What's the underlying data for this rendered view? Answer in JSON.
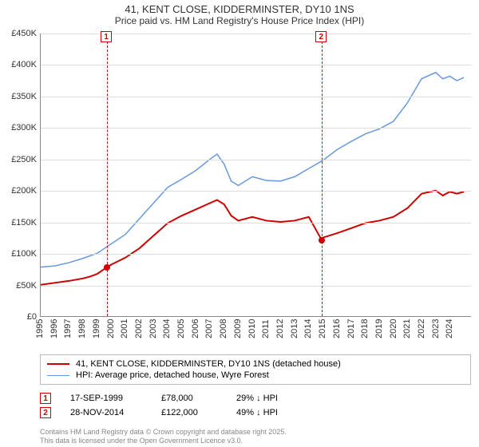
{
  "title": {
    "line1": "41, KENT CLOSE, KIDDERMINSTER, DY10 1NS",
    "line2": "Price paid vs. HM Land Registry's House Price Index (HPI)"
  },
  "chart": {
    "type": "line",
    "background_color": "#ffffff",
    "grid_color": "#dddddd",
    "ylim": [
      0,
      450000
    ],
    "ytick_step": 50000,
    "ytick_labels": [
      "£0",
      "£50K",
      "£100K",
      "£150K",
      "£200K",
      "£250K",
      "£300K",
      "£350K",
      "£400K",
      "£450K"
    ],
    "xlim": [
      1995,
      2025.5
    ],
    "xticks": [
      1995,
      1996,
      1997,
      1998,
      1999,
      2000,
      2001,
      2002,
      2003,
      2004,
      2005,
      2006,
      2007,
      2008,
      2009,
      2010,
      2011,
      2012,
      2013,
      2014,
      2015,
      2016,
      2017,
      2018,
      2019,
      2020,
      2021,
      2022,
      2023,
      2024
    ],
    "series": [
      {
        "name": "price_paid",
        "color": "#cc0000",
        "width": 2,
        "points": [
          [
            1995,
            50000
          ],
          [
            1996,
            53000
          ],
          [
            1997,
            56000
          ],
          [
            1998,
            60000
          ],
          [
            1998.5,
            63000
          ],
          [
            1999,
            67000
          ],
          [
            1999.7,
            78000
          ],
          [
            2000,
            82000
          ],
          [
            2001,
            93000
          ],
          [
            2002,
            108000
          ],
          [
            2003,
            128000
          ],
          [
            2004,
            148000
          ],
          [
            2005,
            160000
          ],
          [
            2006,
            170000
          ],
          [
            2007,
            180000
          ],
          [
            2007.5,
            185000
          ],
          [
            2008,
            178000
          ],
          [
            2008.5,
            160000
          ],
          [
            2009,
            152000
          ],
          [
            2010,
            158000
          ],
          [
            2011,
            152000
          ],
          [
            2012,
            150000
          ],
          [
            2013,
            152000
          ],
          [
            2014,
            158000
          ],
          [
            2014.9,
            122000
          ],
          [
            2015,
            125000
          ],
          [
            2016,
            132000
          ],
          [
            2017,
            140000
          ],
          [
            2018,
            148000
          ],
          [
            2019,
            152000
          ],
          [
            2020,
            158000
          ],
          [
            2021,
            172000
          ],
          [
            2022,
            195000
          ],
          [
            2023,
            200000
          ],
          [
            2023.5,
            192000
          ],
          [
            2024,
            198000
          ],
          [
            2024.5,
            195000
          ],
          [
            2025,
            198000
          ]
        ]
      },
      {
        "name": "hpi",
        "color": "#6699dd",
        "width": 1.5,
        "points": [
          [
            1995,
            78000
          ],
          [
            1996,
            80000
          ],
          [
            1997,
            85000
          ],
          [
            1998,
            92000
          ],
          [
            1999,
            100000
          ],
          [
            2000,
            115000
          ],
          [
            2001,
            130000
          ],
          [
            2002,
            155000
          ],
          [
            2003,
            180000
          ],
          [
            2004,
            205000
          ],
          [
            2005,
            218000
          ],
          [
            2006,
            232000
          ],
          [
            2007,
            250000
          ],
          [
            2007.5,
            258000
          ],
          [
            2008,
            242000
          ],
          [
            2008.5,
            215000
          ],
          [
            2009,
            208000
          ],
          [
            2010,
            222000
          ],
          [
            2011,
            216000
          ],
          [
            2012,
            215000
          ],
          [
            2013,
            222000
          ],
          [
            2014,
            235000
          ],
          [
            2015,
            248000
          ],
          [
            2016,
            265000
          ],
          [
            2017,
            278000
          ],
          [
            2018,
            290000
          ],
          [
            2019,
            298000
          ],
          [
            2020,
            310000
          ],
          [
            2021,
            340000
          ],
          [
            2022,
            378000
          ],
          [
            2023,
            388000
          ],
          [
            2023.5,
            378000
          ],
          [
            2024,
            382000
          ],
          [
            2024.5,
            375000
          ],
          [
            2025,
            380000
          ]
        ]
      }
    ],
    "sale_markers": [
      {
        "n": "1",
        "year": 1999.7,
        "price": 78000,
        "color": "#cc0000"
      },
      {
        "n": "2",
        "year": 2014.9,
        "price": 122000,
        "color": "#cc0000"
      }
    ]
  },
  "legend": {
    "items": [
      {
        "color": "#cc0000",
        "width": 2,
        "label": "41, KENT CLOSE, KIDDERMINSTER, DY10 1NS (detached house)"
      },
      {
        "color": "#6699dd",
        "width": 1.5,
        "label": "HPI: Average price, detached house, Wyre Forest"
      }
    ]
  },
  "annotations": [
    {
      "n": "1",
      "color": "#cc0000",
      "date": "17-SEP-1999",
      "price": "£78,000",
      "diff": "29% ↓ HPI"
    },
    {
      "n": "2",
      "color": "#cc0000",
      "date": "28-NOV-2014",
      "price": "£122,000",
      "diff": "49% ↓ HPI"
    }
  ],
  "footer": {
    "line1": "Contains HM Land Registry data © Crown copyright and database right 2025.",
    "line2": "This data is licensed under the Open Government Licence v3.0."
  }
}
